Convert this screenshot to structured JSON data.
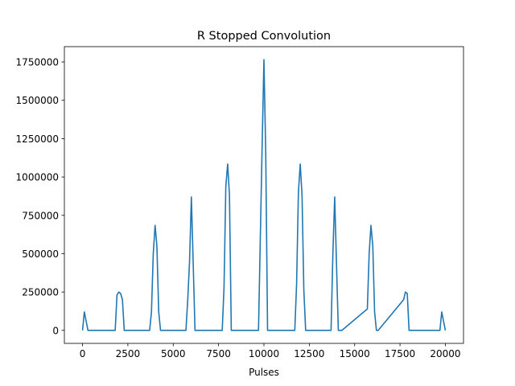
{
  "chart_data": {
    "type": "line",
    "title": "R Stopped Convolution",
    "xlabel": "Pulses",
    "ylabel": "",
    "xlim": [
      -1000,
      21000
    ],
    "ylim": [
      -85000,
      1850000
    ],
    "xticks": [
      0,
      2500,
      5000,
      7500,
      10000,
      12500,
      15000,
      17500,
      20000
    ],
    "yticks": [
      0,
      250000,
      500000,
      750000,
      1000000,
      1250000,
      1500000,
      1750000
    ],
    "grid": false,
    "line_color": "#1f77b4",
    "series": [
      {
        "name": "",
        "x": [
          0,
          100,
          200,
          300,
          1800,
          1900,
          2000,
          2100,
          2200,
          2300,
          3700,
          3800,
          3900,
          4000,
          4100,
          4200,
          4300,
          5700,
          5800,
          5900,
          6000,
          6100,
          6200,
          6300,
          7700,
          7800,
          7900,
          8000,
          8100,
          8200,
          8300,
          9700,
          9800,
          9900,
          10000,
          10100,
          10200,
          10300,
          11700,
          11800,
          11900,
          12000,
          12100,
          12200,
          12300,
          13700,
          13800,
          13900,
          14000,
          14100,
          14200,
          14300,
          15700,
          15800,
          15900,
          16000,
          16100,
          16200,
          16300,
          17700,
          17800,
          17900,
          18000,
          18100,
          18200,
          19700,
          19800,
          19900,
          20000
        ],
        "values": [
          0,
          120000,
          60000,
          0,
          0,
          230000,
          250000,
          240000,
          200000,
          0,
          0,
          120000,
          500000,
          685000,
          550000,
          120000,
          0,
          0,
          200000,
          450000,
          870000,
          440000,
          0,
          0,
          0,
          280000,
          940000,
          1085000,
          880000,
          0,
          0,
          0,
          600000,
          1200000,
          1765000,
          1150000,
          0,
          0,
          0,
          300000,
          900000,
          1085000,
          880000,
          260000,
          0,
          0,
          500000,
          870000,
          430000,
          0,
          0,
          0,
          140000,
          500000,
          685000,
          550000,
          120000,
          0,
          0,
          200000,
          250000,
          240000,
          0,
          0,
          0,
          0,
          120000,
          60000,
          0
        ]
      }
    ]
  }
}
